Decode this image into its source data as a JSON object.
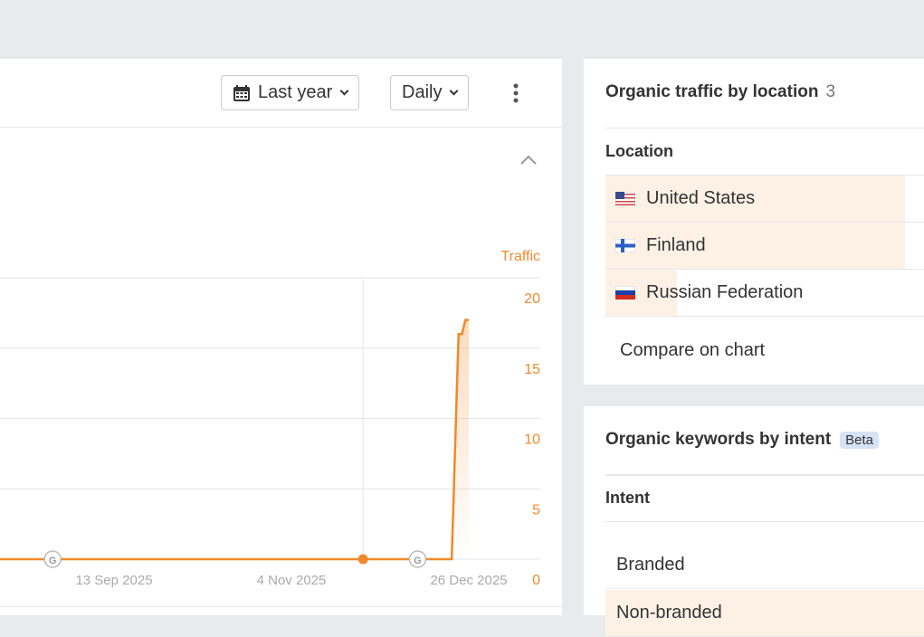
{
  "toolbar": {
    "date_range": "Last year",
    "granularity": "Daily",
    "more_icon": "kebab-icon",
    "calendar_icon": "calendar-icon"
  },
  "chart_data": {
    "type": "line",
    "ylabel": "Traffic",
    "ylim": [
      0,
      20
    ],
    "yticks": [
      "0",
      "5",
      "10",
      "15",
      "20"
    ],
    "xticks": [
      {
        "date": "2025-09-13",
        "label": "13 Sep 2025"
      },
      {
        "date": "2025-11-04",
        "label": "4 Nov 2025"
      },
      {
        "date": "2025-12-26",
        "label": "26 Dec 2025"
      }
    ],
    "series": [
      {
        "color": "#f0892b",
        "points": [
          [
            "2025-08-01",
            0
          ],
          [
            "2025-12-21",
            0
          ],
          [
            "2025-12-23",
            16
          ],
          [
            "2025-12-24",
            16
          ],
          [
            "2025-12-25",
            17
          ],
          [
            "2025-12-26",
            17
          ]
        ]
      }
    ],
    "annotations": [
      {
        "date": "2025-08-26",
        "type": "google-update",
        "label": "G"
      },
      {
        "date": "2025-11-25",
        "type": "dot"
      },
      {
        "date": "2025-12-11",
        "type": "google-update",
        "label": "G"
      }
    ],
    "grid": true
  },
  "location": {
    "title": "Organic traffic by location",
    "count": "3",
    "column": "Location",
    "rows": [
      {
        "name": "United States",
        "flag": "us",
        "share": 1.0
      },
      {
        "name": "Finland",
        "flag": "fi",
        "share": 1.0
      },
      {
        "name": "Russian Federation",
        "flag": "ru",
        "share": 0.24
      }
    ],
    "compare": "Compare on chart"
  },
  "intent": {
    "title": "Organic keywords by intent",
    "badge": "Beta",
    "column": "Intent",
    "rows": [
      {
        "name": "Branded",
        "share": 0
      },
      {
        "name": "Non-branded",
        "share": 1
      }
    ]
  },
  "colors": {
    "accent": "#f0892b",
    "highlight": "#fdf1e6"
  }
}
